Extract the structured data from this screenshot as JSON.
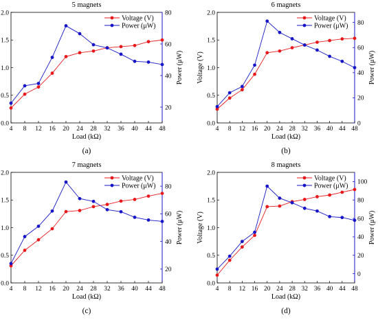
{
  "charts": [
    {
      "title": "5 magnets",
      "caption": "(a)",
      "xlabel": "Load (kΩ)",
      "ylabel_left": "Voltage (V)",
      "ylabel_right": "Power (μW)",
      "legend": [
        "Voltage (V)",
        "Power (μW)"
      ]
    },
    {
      "title": "6 magnets",
      "caption": "(b)",
      "xlabel": "Load (kΩ)",
      "ylabel_left": "Voltage (V)",
      "ylabel_right": "Power (μW)",
      "legend": [
        "Voltage (V)",
        "Power (μW)"
      ]
    },
    {
      "title": "7 magnets",
      "caption": "(c)",
      "xlabel": "Load (kΩ)",
      "ylabel_left": "Voltage (V)",
      "ylabel_right": "Power (μW)",
      "legend": [
        "Voltage (V)",
        "Power (μW)"
      ]
    },
    {
      "title": "8 magnets",
      "caption": "(d)",
      "xlabel": "Load (kΩ)",
      "ylabel_left": "Voltage (V)",
      "ylabel_right": "Power (μW)",
      "legend": [
        "Voltage (V)",
        "Power (μW)"
      ]
    }
  ],
  "colors": {
    "voltage": "#e8191c",
    "power": "#1616c8",
    "axis": "#000000"
  },
  "chart_data": [
    {
      "type": "line",
      "title": "5 magnets",
      "xlabel": "Load (kΩ)",
      "ylabel": "Voltage (V)",
      "y2label": "Power (μW)",
      "x": [
        4,
        8,
        12,
        16,
        20,
        24,
        28,
        32,
        36,
        40,
        44,
        48
      ],
      "xlim": [
        4,
        48
      ],
      "ylim": [
        0,
        2.0
      ],
      "y2lim": [
        10,
        80
      ],
      "yticks": [
        0,
        0.5,
        1.0,
        1.5,
        2.0
      ],
      "y2ticks": [
        20,
        40,
        60,
        80
      ],
      "legend_position": "top-right",
      "series": [
        {
          "name": "Voltage (V)",
          "axis": "left",
          "values": [
            0.27,
            0.52,
            0.65,
            0.9,
            1.2,
            1.27,
            1.3,
            1.36,
            1.38,
            1.4,
            1.47,
            1.5
          ]
        },
        {
          "name": "Power (μW)",
          "axis": "right",
          "values": [
            22.5,
            33.5,
            35,
            51.5,
            71.5,
            66.5,
            59.5,
            57.5,
            53.5,
            49,
            48.5,
            47
          ]
        }
      ]
    },
    {
      "type": "line",
      "title": "6 magnets",
      "xlabel": "Load (kΩ)",
      "ylabel": "Voltage (V)",
      "y2label": "Power (μW)",
      "x": [
        4,
        8,
        12,
        16,
        20,
        24,
        28,
        32,
        36,
        40,
        44,
        48
      ],
      "xlim": [
        4,
        48
      ],
      "ylim": [
        0,
        2.0
      ],
      "y2lim": [
        0,
        88
      ],
      "yticks": [
        0,
        0.5,
        1.0,
        1.5,
        2.0
      ],
      "y2ticks": [
        0,
        20,
        40,
        60,
        80
      ],
      "legend_position": "top-right",
      "series": [
        {
          "name": "Voltage (V)",
          "axis": "left",
          "values": [
            0.25,
            0.45,
            0.6,
            0.88,
            1.27,
            1.3,
            1.36,
            1.41,
            1.46,
            1.49,
            1.52,
            1.53
          ]
        },
        {
          "name": "Power (μW)",
          "axis": "right",
          "values": [
            13,
            24,
            29,
            46,
            81,
            72,
            67,
            62,
            58,
            53,
            49,
            44
          ]
        }
      ]
    },
    {
      "type": "line",
      "title": "7 magnets",
      "xlabel": "Load (kΩ)",
      "ylabel": "Voltage (V)",
      "y2label": "Power (μW)",
      "x": [
        4,
        8,
        12,
        16,
        20,
        24,
        28,
        32,
        36,
        40,
        44,
        48
      ],
      "xlim": [
        4,
        48
      ],
      "ylim": [
        0,
        2.0
      ],
      "y2lim": [
        10,
        90
      ],
      "yticks": [
        0,
        0.5,
        1.0,
        1.5,
        2.0
      ],
      "y2ticks": [
        20,
        40,
        60,
        80
      ],
      "legend_position": "top-right",
      "series": [
        {
          "name": "Voltage (V)",
          "axis": "left",
          "values": [
            0.31,
            0.59,
            0.78,
            0.98,
            1.29,
            1.31,
            1.38,
            1.42,
            1.48,
            1.51,
            1.57,
            1.62
          ]
        },
        {
          "name": "Power (μW)",
          "axis": "right",
          "values": [
            24,
            43.5,
            51,
            62,
            83,
            71,
            69,
            63,
            61.5,
            57.5,
            55.5,
            54.5
          ]
        }
      ]
    },
    {
      "type": "line",
      "title": "8 magnets",
      "xlabel": "Load (kΩ)",
      "ylabel": "Voltage (V)",
      "y2label": "Power (μW)",
      "x": [
        4,
        8,
        12,
        16,
        20,
        24,
        28,
        32,
        36,
        40,
        44,
        48
      ],
      "xlim": [
        4,
        48
      ],
      "ylim": [
        0,
        2.0
      ],
      "y2lim": [
        -10,
        110
      ],
      "yticks": [
        0,
        0.5,
        1.0,
        1.5,
        2.0
      ],
      "y2ticks": [
        0,
        20,
        40,
        60,
        80,
        100
      ],
      "legend_position": "top-right",
      "series": [
        {
          "name": "Voltage (V)",
          "axis": "left",
          "values": [
            0.14,
            0.41,
            0.65,
            0.86,
            1.38,
            1.39,
            1.47,
            1.51,
            1.56,
            1.59,
            1.64,
            1.69
          ]
        },
        {
          "name": "Power (μW)",
          "axis": "right",
          "values": [
            5,
            19,
            35,
            45,
            95,
            82,
            77,
            71,
            68,
            62,
            61,
            58
          ]
        }
      ]
    }
  ]
}
